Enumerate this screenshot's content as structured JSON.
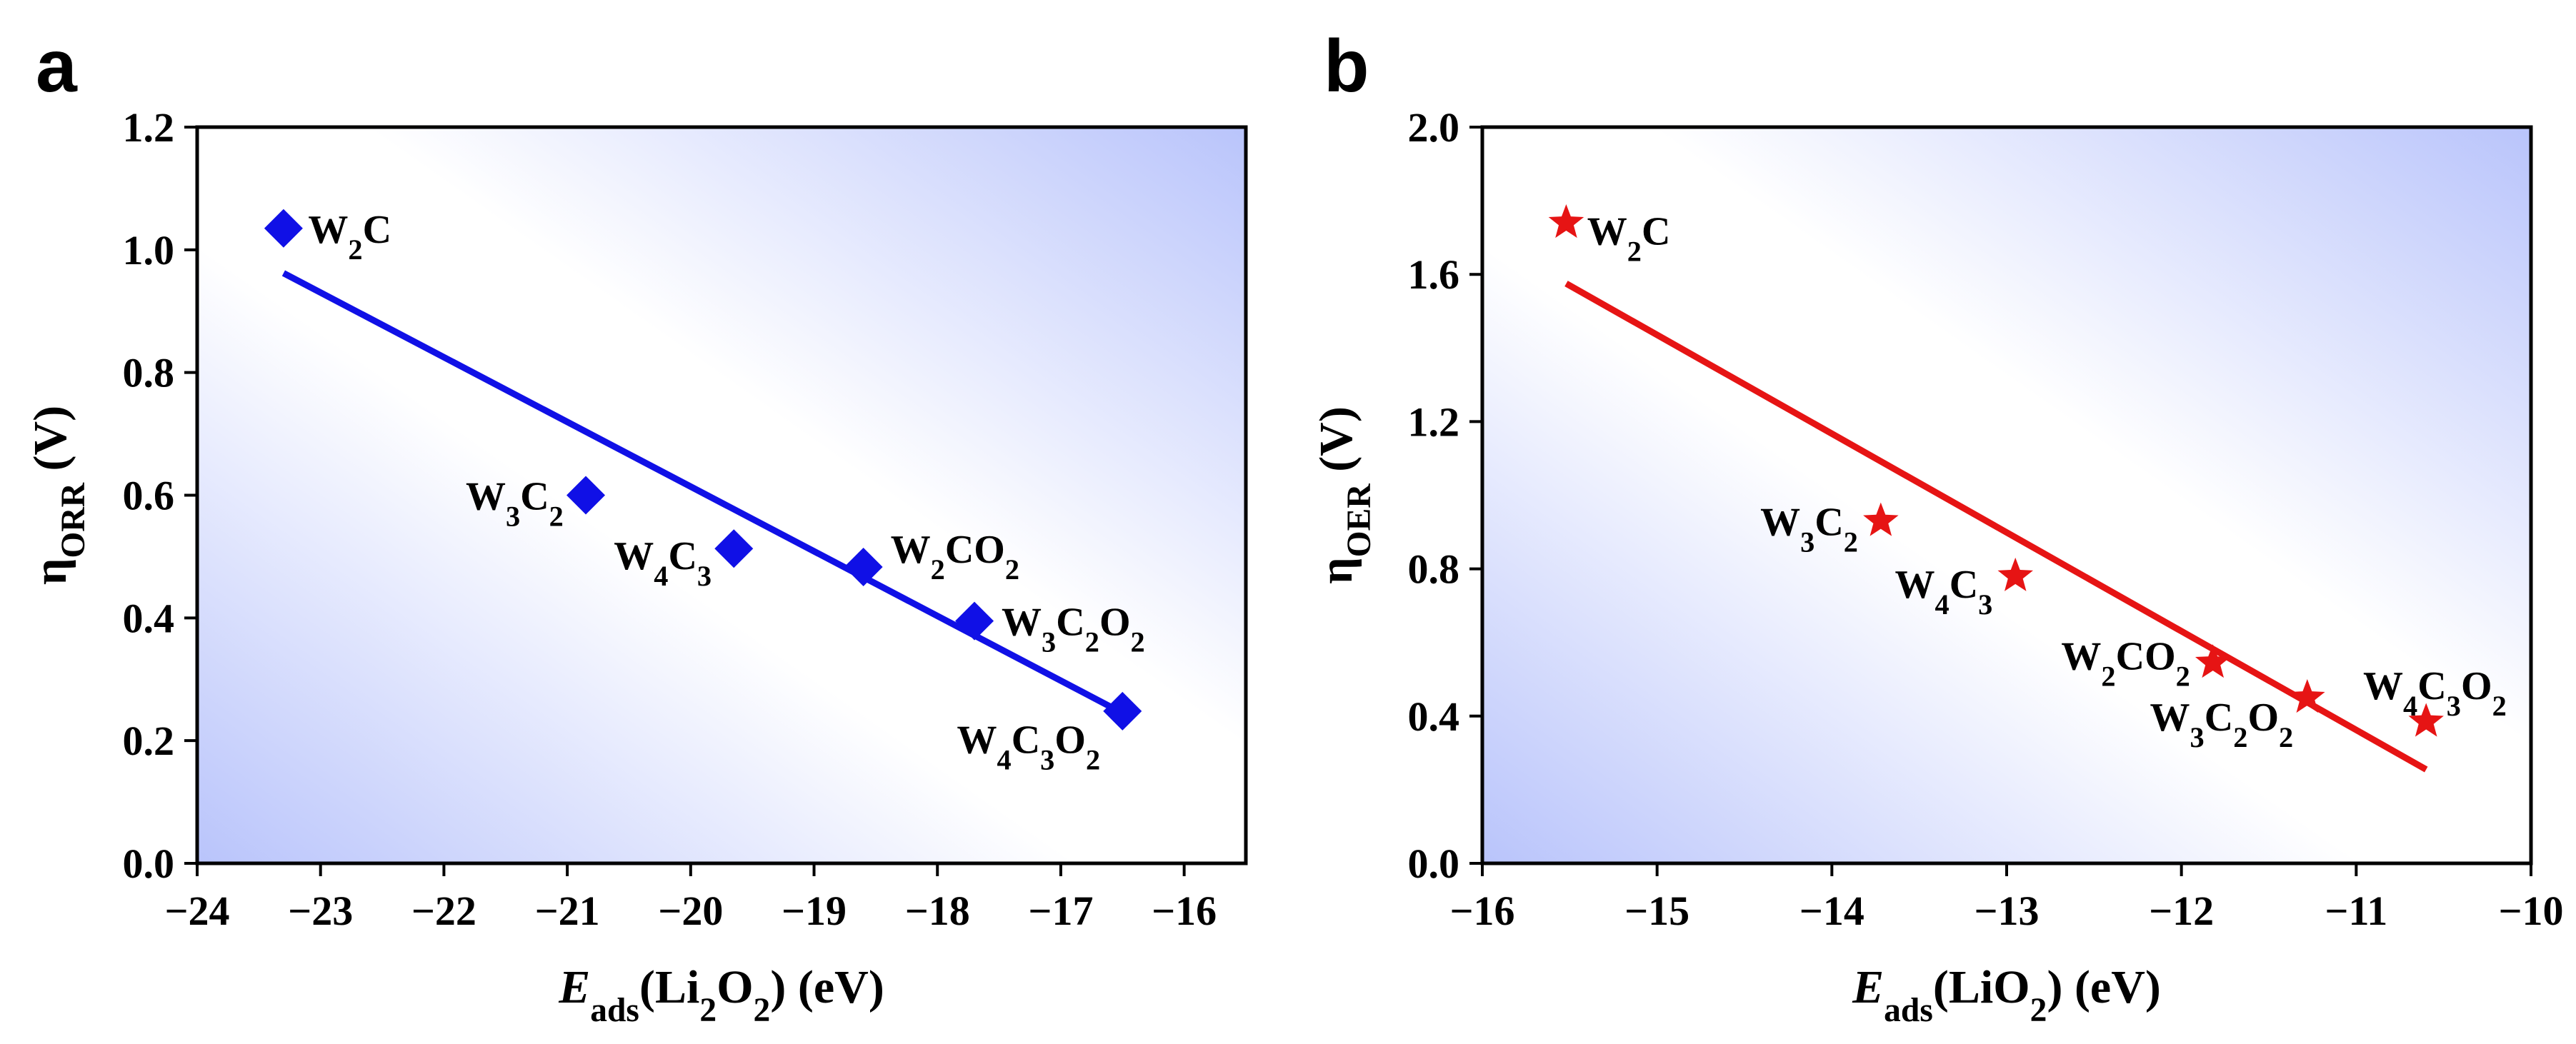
{
  "colors": {
    "panel_a_series": "#1010e6",
    "panel_b_series": "#e61414",
    "gradient_blue": "#b9c4fb"
  },
  "chart_data": [
    {
      "panel": "a",
      "type": "scatter",
      "marker": "diamond",
      "color": "#1010e6",
      "xlabel": {
        "base": "E",
        "sub": "ads",
        "mid": "(Li",
        "sub2": "2",
        "mid2": "O",
        "sub3": "2",
        "end": ") (eV)"
      },
      "ylabel": {
        "base": "η",
        "sub": "ORR",
        "end": " (V)"
      },
      "xlim": [
        -24,
        -15.5
      ],
      "ylim": [
        0,
        1.2
      ],
      "xticks": [
        -24,
        -23,
        -22,
        -21,
        -20,
        -19,
        -18,
        -17,
        -16
      ],
      "xtick_labels": [
        "−24",
        "−23",
        "−22",
        "−21",
        "−20",
        "−19",
        "−18",
        "−17",
        "−16"
      ],
      "yticks": [
        0,
        0.2,
        0.4,
        0.6,
        0.8,
        1.0,
        1.2
      ],
      "ytick_labels": [
        "0.0",
        "0.2",
        "0.4",
        "0.6",
        "0.8",
        "1.0",
        "1.2"
      ],
      "points": [
        {
          "x": -23.3,
          "y": 1.035,
          "label": [
            [
              "W",
              "2"
            ],
            [
              "C",
              ""
            ]
          ],
          "anchor": "start",
          "dx": 0.2,
          "dy": 0.0
        },
        {
          "x": -20.85,
          "y": 0.6,
          "label": [
            [
              "W",
              "3"
            ],
            [
              "C",
              "2"
            ]
          ],
          "anchor": "end",
          "dx": -0.18,
          "dy": 0.0
        },
        {
          "x": -19.65,
          "y": 0.513,
          "label": [
            [
              "W",
              "4"
            ],
            [
              "C",
              "3"
            ]
          ],
          "anchor": "end",
          "dx": -0.18,
          "dy": -0.01
        },
        {
          "x": -18.6,
          "y": 0.483,
          "label": [
            [
              "W",
              "2"
            ],
            [
              "CO",
              "2"
            ]
          ],
          "anchor": "start",
          "dx": 0.22,
          "dy": 0.03
        },
        {
          "x": -17.7,
          "y": 0.395,
          "label": [
            [
              "W",
              "3"
            ],
            [
              "C",
              "2"
            ],
            [
              "O",
              "2"
            ]
          ],
          "anchor": "start",
          "dx": 0.22,
          "dy": 0.0
        },
        {
          "x": -16.5,
          "y": 0.248,
          "label": [
            [
              "W",
              "4"
            ],
            [
              "C",
              "3"
            ],
            [
              "O",
              "2"
            ]
          ],
          "anchor": "end",
          "dx": -0.18,
          "dy": -0.045
        }
      ],
      "fit": {
        "x": [
          -23.3,
          -16.5
        ],
        "y": [
          0.962,
          0.245
        ]
      }
    },
    {
      "panel": "b",
      "type": "scatter",
      "marker": "star",
      "color": "#e61414",
      "xlabel": {
        "base": "E",
        "sub": "ads",
        "mid": "(LiO",
        "sub2": "2",
        "mid2": "",
        "sub3": "",
        "end": ") (eV)"
      },
      "ylabel": {
        "base": "η",
        "sub": "OER",
        "end": " (V)"
      },
      "xlim": [
        -16,
        -10
      ],
      "ylim": [
        0,
        2.0
      ],
      "xticks": [
        -16,
        -15,
        -14,
        -13,
        -12,
        -11,
        -10
      ],
      "xtick_labels": [
        "−16",
        "−15",
        "−14",
        "−13",
        "−12",
        "−11",
        "−10"
      ],
      "yticks": [
        0,
        0.4,
        0.8,
        1.2,
        1.6,
        2.0
      ],
      "ytick_labels": [
        "0.0",
        "0.4",
        "0.8",
        "1.2",
        "1.6",
        "2.0"
      ],
      "points": [
        {
          "x": -15.52,
          "y": 1.74,
          "label": [
            [
              "W",
              "2"
            ],
            [
              "C",
              ""
            ]
          ],
          "anchor": "start",
          "dx": 0.12,
          "dy": -0.02
        },
        {
          "x": -13.72,
          "y": 0.93,
          "label": [
            [
              "W",
              "3"
            ],
            [
              "C",
              "2"
            ]
          ],
          "anchor": "end",
          "dx": -0.13,
          "dy": 0.0
        },
        {
          "x": -12.95,
          "y": 0.78,
          "label": [
            [
              "W",
              "4"
            ],
            [
              "C",
              "3"
            ]
          ],
          "anchor": "end",
          "dx": -0.13,
          "dy": -0.02
        },
        {
          "x": -11.82,
          "y": 0.545,
          "label": [
            [
              "W",
              "2"
            ],
            [
              "CO",
              "2"
            ]
          ],
          "anchor": "end",
          "dx": -0.13,
          "dy": 0.02
        },
        {
          "x": -11.28,
          "y": 0.45,
          "label": [
            [
              "W",
              "3"
            ],
            [
              "C",
              "2"
            ],
            [
              "O",
              "2"
            ]
          ],
          "anchor": "end",
          "dx": -0.08,
          "dy": -0.05
        },
        {
          "x": -10.6,
          "y": 0.385,
          "label": [
            [
              "W",
              "4"
            ],
            [
              "C",
              "3"
            ],
            [
              "O",
              "2"
            ]
          ],
          "anchor": "middle",
          "dx": 0.05,
          "dy": 0.1
        }
      ],
      "fit": {
        "x": [
          -15.52,
          -10.6
        ],
        "y": [
          1.575,
          0.255
        ]
      }
    }
  ],
  "panels": {
    "a": {
      "letter": "a"
    },
    "b": {
      "letter": "b"
    }
  }
}
